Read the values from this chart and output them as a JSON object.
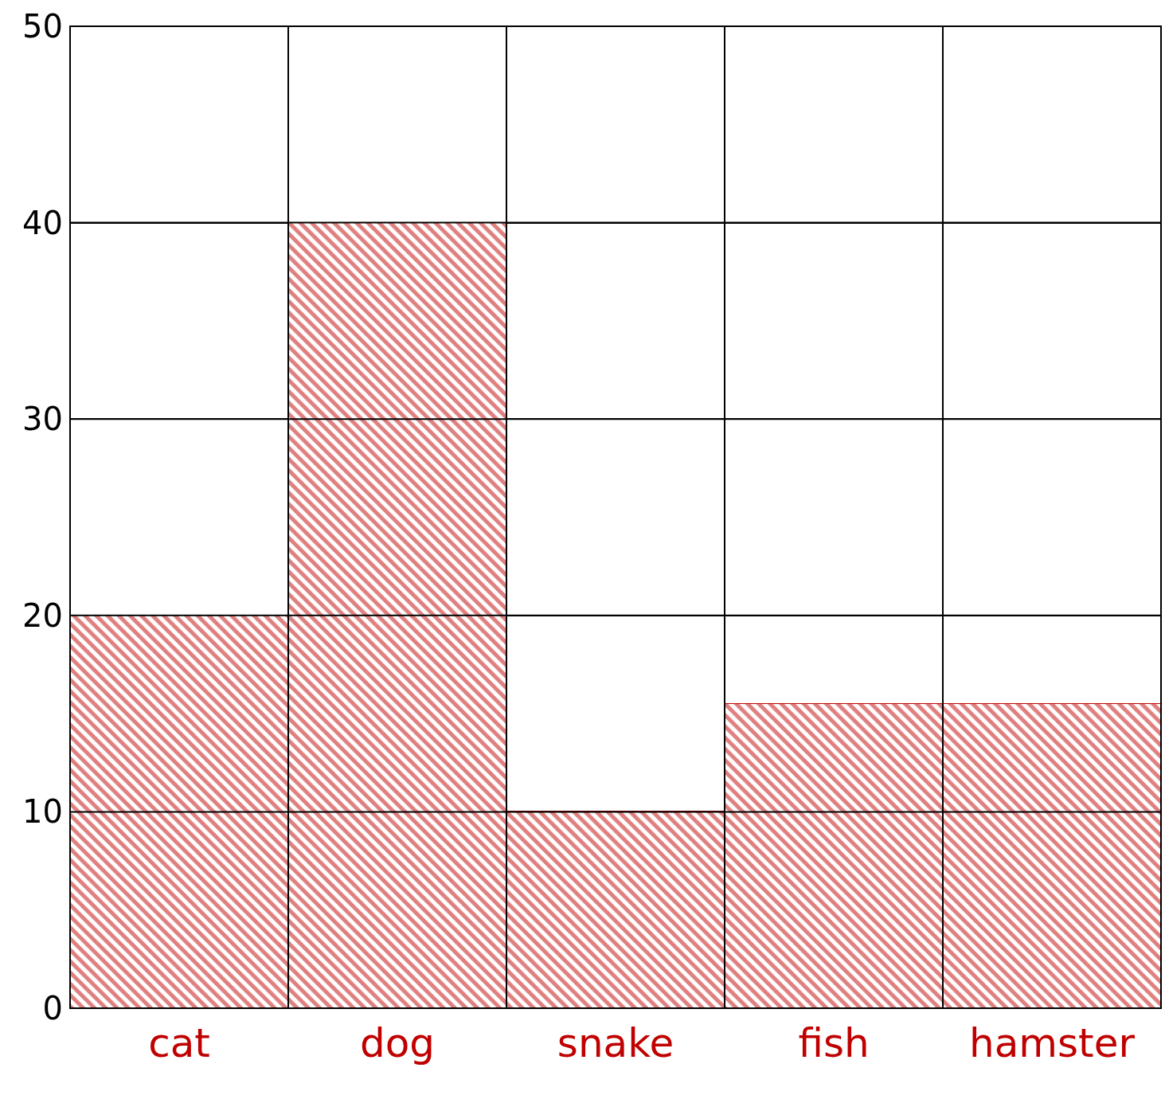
{
  "chart_data": {
    "type": "bar",
    "categories": [
      "cat",
      "dog",
      "snake",
      "fish",
      "hamster"
    ],
    "values": [
      20,
      40,
      10,
      15.5,
      15.5
    ],
    "color": "#c00000",
    "ylim": [
      0,
      50
    ],
    "yticks": [
      0,
      10,
      20,
      30,
      40,
      50
    ],
    "grid": true
  }
}
